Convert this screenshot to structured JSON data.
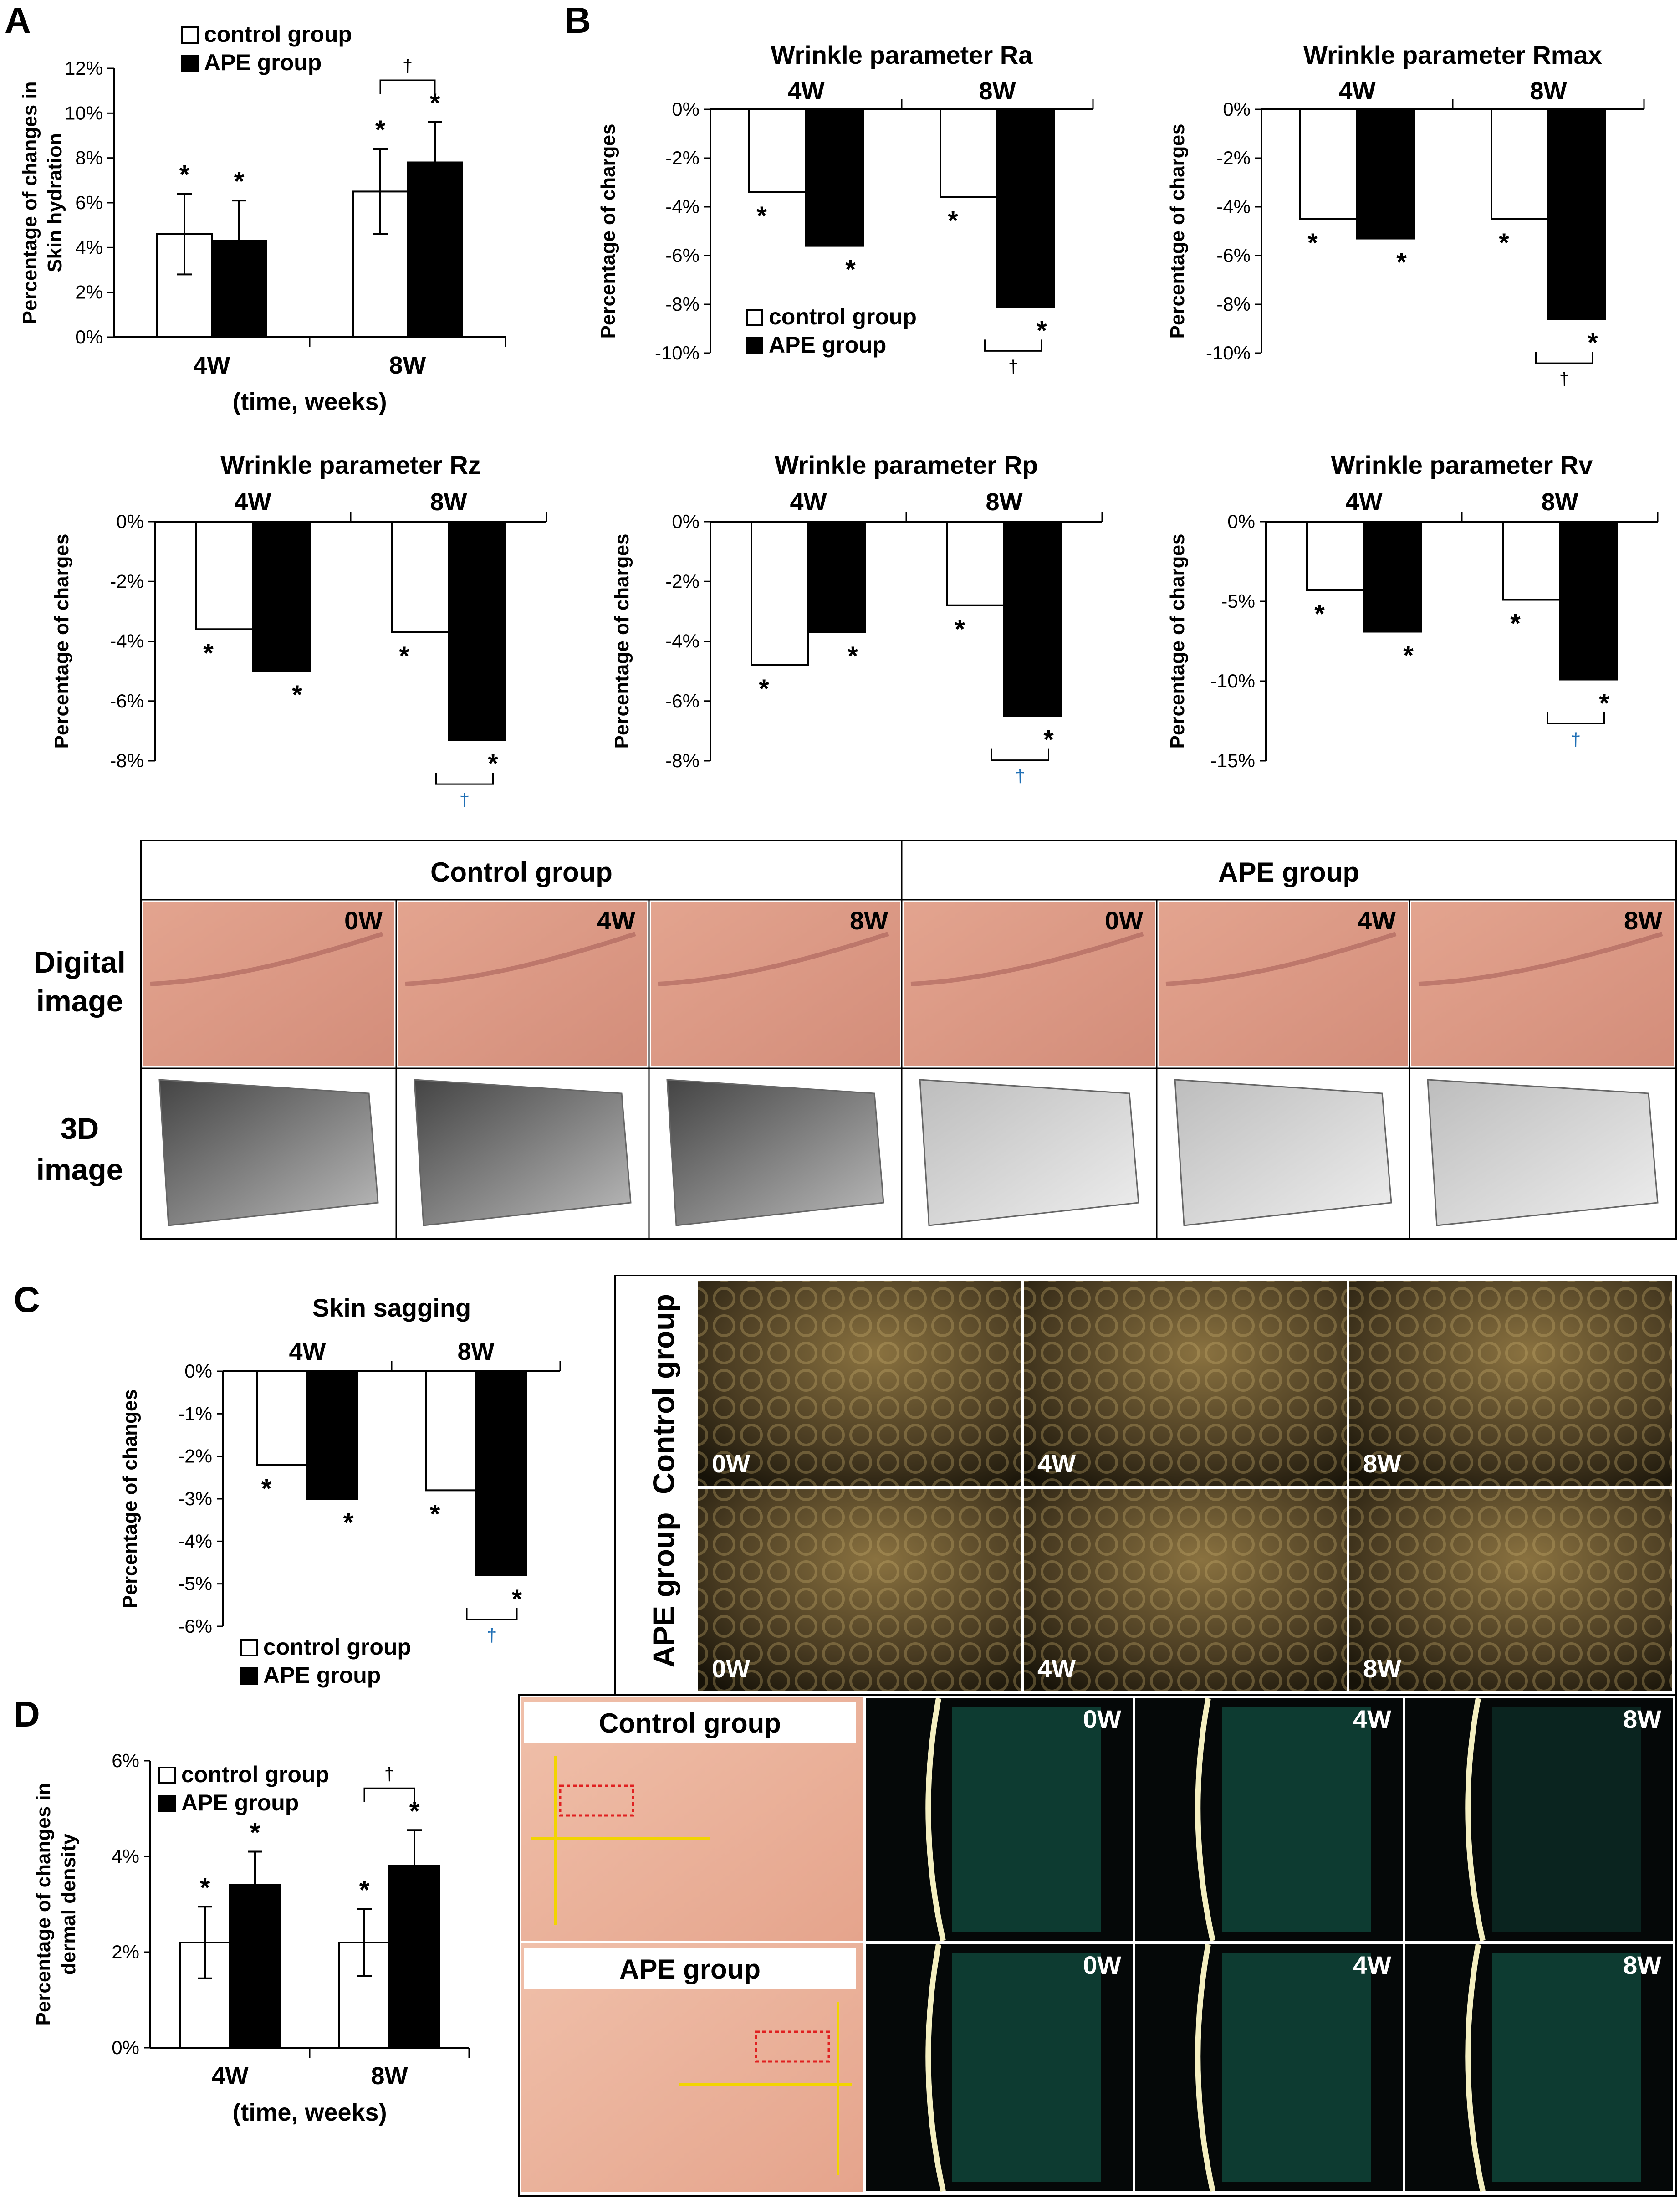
{
  "panels": [
    "A",
    "B",
    "C",
    "D"
  ],
  "legend": {
    "control": "control group",
    "ape": "APE group"
  },
  "star": "*",
  "dagger": "†",
  "colors": {
    "control": "#ffffff",
    "ape": "#000000",
    "dagger_blue": "#1f6fb5",
    "guide": "#f2d400",
    "roi": "#e02020"
  },
  "chart_data": [
    {
      "id": "A",
      "type": "bar",
      "title": "",
      "ylabel": "Percentage of changes in Skin hydration",
      "ylabel_lines": [
        "Percentage of changes in",
        "Skin hydration"
      ],
      "xlabel": "(time, weeks)",
      "categories": [
        "4W",
        "8W"
      ],
      "ylim": [
        0,
        12
      ],
      "yticks": [
        "0%",
        "2%",
        "4%",
        "6%",
        "8%",
        "10%",
        "12%"
      ],
      "series": [
        {
          "name": "control group",
          "values": [
            4.6,
            6.5
          ],
          "errors": [
            1.8,
            1.9
          ]
        },
        {
          "name": "APE group",
          "values": [
            4.3,
            7.8
          ],
          "errors": [
            1.8,
            1.8
          ]
        }
      ],
      "significance": "8W"
    },
    {
      "id": "Ra",
      "type": "bar",
      "title": "Wrinkle parameter Ra",
      "ylabel": "Percentage of charges",
      "categories": [
        "4W",
        "8W"
      ],
      "ylim": [
        -10,
        0
      ],
      "yticks": [
        "0%",
        "-2%",
        "-4%",
        "-6%",
        "-8%",
        "-10%"
      ],
      "series": [
        {
          "name": "control group",
          "values": [
            -3.4,
            -3.6
          ]
        },
        {
          "name": "APE group",
          "values": [
            -5.6,
            -8.1
          ]
        }
      ],
      "significance": "8W"
    },
    {
      "id": "Rmax",
      "type": "bar",
      "title": "Wrinkle parameter Rmax",
      "ylabel": "Percentage of charges",
      "categories": [
        "4W",
        "8W"
      ],
      "ylim": [
        -10,
        0
      ],
      "yticks": [
        "0%",
        "-2%",
        "-4%",
        "-6%",
        "-8%",
        "-10%"
      ],
      "series": [
        {
          "name": "control group",
          "values": [
            -4.5,
            -4.5
          ]
        },
        {
          "name": "APE group",
          "values": [
            -5.3,
            -8.6
          ]
        }
      ],
      "significance": "8W"
    },
    {
      "id": "Rz",
      "type": "bar",
      "title": "Wrinkle parameter Rz",
      "ylabel": "Percentage of charges",
      "categories": [
        "4W",
        "8W"
      ],
      "ylim": [
        -8,
        0
      ],
      "yticks": [
        "0%",
        "-2%",
        "-4%",
        "-6%",
        "-8%"
      ],
      "series": [
        {
          "name": "control group",
          "values": [
            -3.6,
            -3.7
          ]
        },
        {
          "name": "APE group",
          "values": [
            -5.0,
            -7.3
          ]
        }
      ],
      "significance": "8W"
    },
    {
      "id": "Rp",
      "type": "bar",
      "title": "Wrinkle parameter Rp",
      "ylabel": "Percentage of charges",
      "categories": [
        "4W",
        "8W"
      ],
      "ylim": [
        -8,
        0
      ],
      "yticks": [
        "0%",
        "-2%",
        "-4%",
        "-6%",
        "-8%"
      ],
      "series": [
        {
          "name": "control group",
          "values": [
            -4.8,
            -2.8
          ]
        },
        {
          "name": "APE group",
          "values": [
            -3.7,
            -6.5
          ]
        }
      ],
      "significance": "8W"
    },
    {
      "id": "Rv",
      "type": "bar",
      "title": "Wrinkle parameter Rv",
      "ylabel": "Percentage of charges",
      "categories": [
        "4W",
        "8W"
      ],
      "ylim": [
        -15,
        0
      ],
      "yticks": [
        "0%",
        "-5%",
        "-10%",
        "-15%"
      ],
      "series": [
        {
          "name": "control group",
          "values": [
            -4.3,
            -4.9
          ]
        },
        {
          "name": "APE group",
          "values": [
            -6.9,
            -9.9
          ]
        }
      ],
      "significance": "8W"
    },
    {
      "id": "C",
      "type": "bar",
      "title": "Skin sagging",
      "ylabel": "Percentage of changes",
      "categories": [
        "4W",
        "8W"
      ],
      "ylim": [
        -6,
        0
      ],
      "yticks": [
        "0%",
        "-1%",
        "-2%",
        "-3%",
        "-4%",
        "-5%",
        "-6%"
      ],
      "series": [
        {
          "name": "control group",
          "values": [
            -2.2,
            -2.8
          ]
        },
        {
          "name": "APE group",
          "values": [
            -3.0,
            -4.8
          ]
        }
      ],
      "significance": "8W"
    },
    {
      "id": "D",
      "type": "bar",
      "title": "",
      "ylabel": "Percentage of changes in dermal density",
      "ylabel_lines": [
        "Percentage of changes in",
        "dermal density"
      ],
      "xlabel": "(time, weeks)",
      "categories": [
        "4W",
        "8W"
      ],
      "ylim": [
        0,
        6
      ],
      "yticks": [
        "0%",
        "2%",
        "4%",
        "6%"
      ],
      "series": [
        {
          "name": "control group",
          "values": [
            2.2,
            2.2
          ],
          "errors": [
            0.75,
            0.7
          ]
        },
        {
          "name": "APE group",
          "values": [
            3.4,
            3.8
          ],
          "errors": [
            0.7,
            0.75
          ]
        }
      ],
      "significance": "8W"
    }
  ],
  "images_table": {
    "col_groups": [
      "Control group",
      "APE group"
    ],
    "rows": [
      {
        "line1": "Digital",
        "line2": "image"
      },
      {
        "line1": "3D",
        "line2": "image"
      }
    ],
    "timepoints": [
      "0W",
      "4W",
      "8W",
      "0W",
      "4W",
      "8W"
    ]
  },
  "moire": {
    "rows": [
      "Control group",
      "APE group"
    ],
    "timepoints": [
      "0W",
      "4W",
      "8W"
    ]
  },
  "dermal": {
    "rows": [
      "Control group",
      "APE group"
    ],
    "timepoints": [
      "0W",
      "4W",
      "8W"
    ]
  }
}
